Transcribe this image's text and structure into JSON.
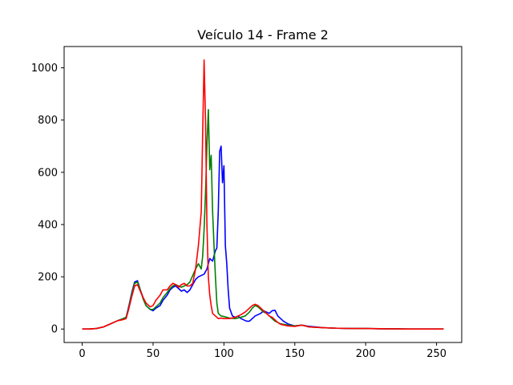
{
  "chart_data": {
    "type": "line",
    "title": "Veículo 14 - Frame 2",
    "xlabel": "",
    "ylabel": "",
    "xlim": [
      -12.75,
      267.75
    ],
    "ylim": [
      -51.5,
      1081.5
    ],
    "xticks": [
      0,
      50,
      100,
      150,
      200,
      250
    ],
    "yticks": [
      0,
      200,
      400,
      600,
      800,
      1000
    ],
    "grid": false,
    "legend": "none",
    "series": [
      {
        "color": "#0000ff",
        "points": [
          [
            0,
            0
          ],
          [
            5,
            0
          ],
          [
            10,
            2
          ],
          [
            15,
            8
          ],
          [
            20,
            20
          ],
          [
            25,
            32
          ],
          [
            28,
            38
          ],
          [
            31,
            45
          ],
          [
            33,
            90
          ],
          [
            35,
            140
          ],
          [
            37,
            180
          ],
          [
            39,
            185
          ],
          [
            41,
            150
          ],
          [
            43,
            120
          ],
          [
            45,
            90
          ],
          [
            48,
            75
          ],
          [
            50,
            70
          ],
          [
            52,
            80
          ],
          [
            55,
            90
          ],
          [
            57,
            110
          ],
          [
            60,
            130
          ],
          [
            62,
            150
          ],
          [
            64,
            160
          ],
          [
            66,
            165
          ],
          [
            68,
            155
          ],
          [
            70,
            145
          ],
          [
            72,
            150
          ],
          [
            74,
            140
          ],
          [
            76,
            150
          ],
          [
            78,
            170
          ],
          [
            80,
            190
          ],
          [
            82,
            200
          ],
          [
            84,
            205
          ],
          [
            86,
            210
          ],
          [
            88,
            230
          ],
          [
            90,
            270
          ],
          [
            92,
            260
          ],
          [
            94,
            300
          ],
          [
            95,
            310
          ],
          [
            96,
            450
          ],
          [
            97,
            680
          ],
          [
            98,
            700
          ],
          [
            99,
            560
          ],
          [
            100,
            625
          ],
          [
            101,
            320
          ],
          [
            102,
            250
          ],
          [
            103,
            150
          ],
          [
            104,
            80
          ],
          [
            106,
            50
          ],
          [
            108,
            45
          ],
          [
            110,
            50
          ],
          [
            112,
            40
          ],
          [
            114,
            35
          ],
          [
            116,
            30
          ],
          [
            118,
            30
          ],
          [
            120,
            40
          ],
          [
            122,
            50
          ],
          [
            124,
            55
          ],
          [
            126,
            60
          ],
          [
            128,
            70
          ],
          [
            130,
            65
          ],
          [
            132,
            60
          ],
          [
            134,
            70
          ],
          [
            136,
            72
          ],
          [
            138,
            50
          ],
          [
            140,
            40
          ],
          [
            142,
            30
          ],
          [
            145,
            20
          ],
          [
            148,
            15
          ],
          [
            150,
            12
          ],
          [
            155,
            15
          ],
          [
            160,
            10
          ],
          [
            165,
            8
          ],
          [
            170,
            5
          ],
          [
            180,
            3
          ],
          [
            190,
            2
          ],
          [
            200,
            2
          ],
          [
            210,
            1
          ],
          [
            220,
            1
          ],
          [
            230,
            0
          ],
          [
            240,
            0
          ],
          [
            255,
            0
          ]
        ]
      },
      {
        "color": "#008000",
        "points": [
          [
            0,
            0
          ],
          [
            5,
            0
          ],
          [
            10,
            2
          ],
          [
            15,
            8
          ],
          [
            20,
            20
          ],
          [
            25,
            32
          ],
          [
            28,
            38
          ],
          [
            31,
            45
          ],
          [
            33,
            85
          ],
          [
            35,
            135
          ],
          [
            37,
            175
          ],
          [
            39,
            180
          ],
          [
            41,
            150
          ],
          [
            43,
            115
          ],
          [
            45,
            90
          ],
          [
            48,
            75
          ],
          [
            50,
            75
          ],
          [
            52,
            85
          ],
          [
            55,
            100
          ],
          [
            57,
            120
          ],
          [
            60,
            140
          ],
          [
            62,
            155
          ],
          [
            64,
            165
          ],
          [
            66,
            170
          ],
          [
            68,
            165
          ],
          [
            70,
            160
          ],
          [
            72,
            165
          ],
          [
            74,
            170
          ],
          [
            76,
            180
          ],
          [
            78,
            205
          ],
          [
            80,
            230
          ],
          [
            82,
            250
          ],
          [
            84,
            230
          ],
          [
            85,
            280
          ],
          [
            86,
            380
          ],
          [
            87,
            520
          ],
          [
            88,
            700
          ],
          [
            89,
            840
          ],
          [
            90,
            610
          ],
          [
            91,
            665
          ],
          [
            92,
            450
          ],
          [
            93,
            320
          ],
          [
            94,
            200
          ],
          [
            95,
            100
          ],
          [
            96,
            60
          ],
          [
            98,
            50
          ],
          [
            100,
            48
          ],
          [
            104,
            42
          ],
          [
            108,
            40
          ],
          [
            112,
            45
          ],
          [
            115,
            50
          ],
          [
            118,
            65
          ],
          [
            120,
            80
          ],
          [
            122,
            90
          ],
          [
            124,
            85
          ],
          [
            126,
            75
          ],
          [
            128,
            65
          ],
          [
            130,
            60
          ],
          [
            132,
            50
          ],
          [
            134,
            40
          ],
          [
            136,
            30
          ],
          [
            140,
            20
          ],
          [
            145,
            15
          ],
          [
            150,
            12
          ],
          [
            155,
            15
          ],
          [
            160,
            8
          ],
          [
            170,
            5
          ],
          [
            180,
            3
          ],
          [
            190,
            2
          ],
          [
            200,
            2
          ],
          [
            215,
            1
          ],
          [
            230,
            0
          ],
          [
            255,
            0
          ]
        ]
      },
      {
        "color": "#ff0000",
        "points": [
          [
            0,
            0
          ],
          [
            5,
            0
          ],
          [
            10,
            2
          ],
          [
            15,
            8
          ],
          [
            20,
            20
          ],
          [
            25,
            32
          ],
          [
            28,
            35
          ],
          [
            31,
            40
          ],
          [
            33,
            80
          ],
          [
            35,
            125
          ],
          [
            37,
            165
          ],
          [
            39,
            170
          ],
          [
            41,
            145
          ],
          [
            43,
            120
          ],
          [
            45,
            100
          ],
          [
            48,
            85
          ],
          [
            50,
            90
          ],
          [
            52,
            110
          ],
          [
            55,
            130
          ],
          [
            57,
            150
          ],
          [
            60,
            150
          ],
          [
            62,
            165
          ],
          [
            64,
            175
          ],
          [
            66,
            170
          ],
          [
            68,
            160
          ],
          [
            70,
            170
          ],
          [
            72,
            175
          ],
          [
            74,
            165
          ],
          [
            76,
            165
          ],
          [
            78,
            175
          ],
          [
            80,
            230
          ],
          [
            82,
            320
          ],
          [
            84,
            450
          ],
          [
            85,
            750
          ],
          [
            86,
            1030
          ],
          [
            87,
            800
          ],
          [
            88,
            400
          ],
          [
            89,
            200
          ],
          [
            90,
            130
          ],
          [
            91,
            90
          ],
          [
            92,
            60
          ],
          [
            94,
            50
          ],
          [
            96,
            40
          ],
          [
            98,
            42
          ],
          [
            100,
            40
          ],
          [
            104,
            40
          ],
          [
            108,
            45
          ],
          [
            112,
            55
          ],
          [
            115,
            65
          ],
          [
            118,
            80
          ],
          [
            120,
            90
          ],
          [
            122,
            95
          ],
          [
            124,
            90
          ],
          [
            126,
            80
          ],
          [
            128,
            70
          ],
          [
            130,
            60
          ],
          [
            132,
            50
          ],
          [
            134,
            45
          ],
          [
            136,
            35
          ],
          [
            138,
            25
          ],
          [
            140,
            18
          ],
          [
            145,
            12
          ],
          [
            150,
            10
          ],
          [
            155,
            15
          ],
          [
            160,
            8
          ],
          [
            170,
            5
          ],
          [
            180,
            3
          ],
          [
            190,
            2
          ],
          [
            200,
            2
          ],
          [
            215,
            1
          ],
          [
            230,
            0
          ],
          [
            255,
            0
          ]
        ]
      }
    ]
  }
}
